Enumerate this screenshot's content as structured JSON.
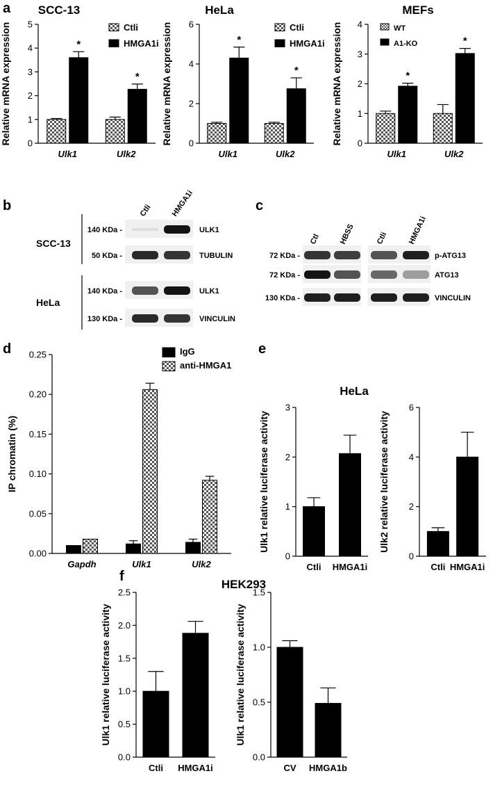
{
  "panel_letters": {
    "a": "a",
    "b": "b",
    "c": "c",
    "d": "d",
    "e": "e",
    "f": "f"
  },
  "significance_marker": "*",
  "colors": {
    "solid_bar": "#000000",
    "checker_fg": "#555555",
    "checker_bg": "#ffffff",
    "blot_band": "#1a1a1a",
    "blot_bg": "#f0f0f0"
  },
  "chart_data": [
    {
      "id": "a1",
      "type": "bar",
      "title": "SCC-13",
      "ylabel": "Relative mRNA expression",
      "xlabel": "",
      "categories": [
        "Ulk1",
        "Ulk2"
      ],
      "ylim": [
        0,
        5
      ],
      "yticks": [
        "0",
        "1",
        "2",
        "3",
        "4",
        "5"
      ],
      "series": [
        {
          "name": "Ctli",
          "pattern": "checker",
          "values": [
            1.0,
            1.0
          ],
          "errors": [
            0.04,
            0.1
          ]
        },
        {
          "name": "HMGA1i",
          "pattern": "solid",
          "values": [
            3.6,
            2.27
          ],
          "errors": [
            0.25,
            0.22
          ]
        }
      ],
      "significance": [
        [
          null,
          "*"
        ],
        [
          null,
          "*"
        ]
      ]
    },
    {
      "id": "a2",
      "type": "bar",
      "title": "HeLa",
      "ylabel": "Relative mRNA expression",
      "xlabel": "",
      "categories": [
        "Ulk1",
        "Ulk2"
      ],
      "ylim": [
        0,
        6
      ],
      "yticks": [
        "0",
        "2",
        "4",
        "6"
      ],
      "series": [
        {
          "name": "Ctli",
          "pattern": "checker",
          "values": [
            1.0,
            1.0
          ],
          "errors": [
            0.06,
            0.06
          ]
        },
        {
          "name": "HMGA1i",
          "pattern": "solid",
          "values": [
            4.3,
            2.75
          ],
          "errors": [
            0.55,
            0.55
          ]
        }
      ],
      "significance": [
        [
          null,
          "*"
        ],
        [
          null,
          "*"
        ]
      ]
    },
    {
      "id": "a3",
      "type": "bar",
      "title": "MEFs",
      "ylabel": "Relative mRNA expression",
      "xlabel": "",
      "categories": [
        "Ulk1",
        "Ulk2"
      ],
      "ylim": [
        0,
        4
      ],
      "yticks": [
        "0",
        "1",
        "2",
        "3",
        "4"
      ],
      "series": [
        {
          "name": "WT",
          "pattern": "checker",
          "values": [
            1.0,
            1.0
          ],
          "errors": [
            0.08,
            0.3
          ]
        },
        {
          "name": "A1-KO",
          "pattern": "solid",
          "values": [
            1.92,
            3.02
          ],
          "errors": [
            0.1,
            0.17
          ]
        }
      ],
      "significance": [
        [
          null,
          "*"
        ],
        [
          null,
          "*"
        ]
      ]
    },
    {
      "id": "d",
      "type": "bar",
      "title": "",
      "ylabel": "IP chromatin (%)",
      "xlabel": "",
      "categories": [
        "Gapdh",
        "Ulk1",
        "Ulk2"
      ],
      "ylim": [
        0,
        0.25
      ],
      "yticks": [
        "0.00",
        "0.05",
        "0.10",
        "0.15",
        "0.20",
        "0.25"
      ],
      "series": [
        {
          "name": "IgG",
          "pattern": "solid",
          "values": [
            0.01,
            0.012,
            0.014
          ],
          "errors": [
            0,
            0.004,
            0.004
          ]
        },
        {
          "name": "anti-HMGA1",
          "pattern": "checker",
          "values": [
            0.018,
            0.206,
            0.092
          ],
          "errors": [
            0,
            0.008,
            0.005
          ]
        }
      ],
      "significance": []
    },
    {
      "id": "e1",
      "type": "bar",
      "title": "",
      "ylabel": "Ulk1 relative luciferase activity",
      "xlabel": "",
      "categories": [
        "Ctli",
        "HMGA1i"
      ],
      "ylim": [
        0,
        3
      ],
      "yticks": [
        "0",
        "1",
        "2",
        "3"
      ],
      "series": [
        {
          "name": "",
          "pattern": "solid",
          "values": [
            1.0,
            2.07
          ],
          "errors": [
            0.18,
            0.37
          ]
        }
      ],
      "significance": [
        [
          null,
          "*"
        ]
      ]
    },
    {
      "id": "e2",
      "type": "bar",
      "title": "",
      "ylabel": "Ulk2 relative luciferase activity",
      "xlabel": "",
      "categories": [
        "Ctli",
        "HMGA1i"
      ],
      "ylim": [
        0,
        6
      ],
      "yticks": [
        "0",
        "2",
        "4",
        "6"
      ],
      "series": [
        {
          "name": "",
          "pattern": "solid",
          "values": [
            1.0,
            4.0
          ],
          "errors": [
            0.15,
            1.0
          ]
        }
      ],
      "significance": [
        [
          null,
          "*"
        ]
      ]
    },
    {
      "id": "f1",
      "type": "bar",
      "title": "",
      "ylabel": "Ulk1 relative luciferase activity",
      "xlabel": "",
      "categories": [
        "Ctli",
        "HMGA1i"
      ],
      "ylim": [
        0,
        2.5
      ],
      "yticks": [
        "0.0",
        "0.5",
        "1.0",
        "1.5",
        "2.0",
        "2.5"
      ],
      "series": [
        {
          "name": "",
          "pattern": "solid",
          "values": [
            1.0,
            1.88
          ],
          "errors": [
            0.3,
            0.18
          ]
        }
      ],
      "significance": [
        [
          null,
          "*"
        ]
      ]
    },
    {
      "id": "f2",
      "type": "bar",
      "title": "",
      "ylabel": "Ulk1 relative luciferase activity",
      "xlabel": "",
      "categories": [
        "CV",
        "HMGA1b"
      ],
      "ylim": [
        0,
        1.5
      ],
      "yticks": [
        "0.0",
        "0.5",
        "1.0",
        "1.5"
      ],
      "series": [
        {
          "name": "",
          "pattern": "solid",
          "values": [
            1.0,
            0.49
          ],
          "errors": [
            0.06,
            0.14
          ]
        }
      ],
      "significance": [
        [
          null,
          "*"
        ]
      ]
    }
  ],
  "group_titles": {
    "e": "HeLa",
    "f": "HEK293"
  },
  "blots": {
    "b": {
      "lanes": [
        "Ctli",
        "HMGA1i"
      ],
      "groups": [
        {
          "name": "SCC-13",
          "rows": [
            {
              "size": "140 KDa -",
              "protein": "ULK1",
              "bands": [
                0.1,
                1.0
              ]
            },
            {
              "size": "50 KDa -",
              "protein": "TUBULIN",
              "bands": [
                0.9,
                0.85
              ]
            }
          ]
        },
        {
          "name": "HeLa",
          "rows": [
            {
              "size": "140 KDa -",
              "protein": "ULK1",
              "bands": [
                0.7,
                1.0
              ]
            },
            {
              "size": "130 KDa -",
              "protein": "VINCULIN",
              "bands": [
                0.9,
                0.85
              ]
            }
          ]
        }
      ]
    },
    "c": {
      "lanes": [
        "Ctl",
        "HBSS",
        "Ctli",
        "HMGA1i"
      ],
      "rows": [
        {
          "size": "72 KDa -",
          "protein": "p-ATG13",
          "bands": [
            0.85,
            0.8,
            0.7,
            0.95
          ]
        },
        {
          "size": "72 KDa -",
          "protein": "ATG13",
          "bands": [
            1.0,
            0.7,
            0.6,
            0.35
          ]
        },
        {
          "size": "130 KDa -",
          "protein": "VINCULIN",
          "bands": [
            0.95,
            0.95,
            0.95,
            0.95
          ]
        }
      ]
    }
  }
}
